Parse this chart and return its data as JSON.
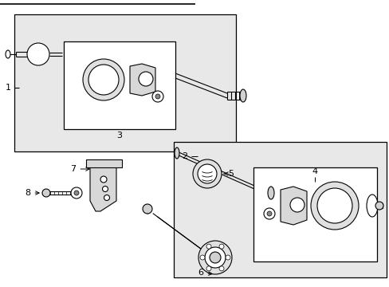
{
  "figsize": [
    4.89,
    3.6
  ],
  "dpi": 100,
  "bg_color": "#ffffff",
  "box_fill": "#e8e8e8",
  "inner_box_fill": "#ffffff",
  "part_fill": "#d8d8d8",
  "line_color": "#000000"
}
